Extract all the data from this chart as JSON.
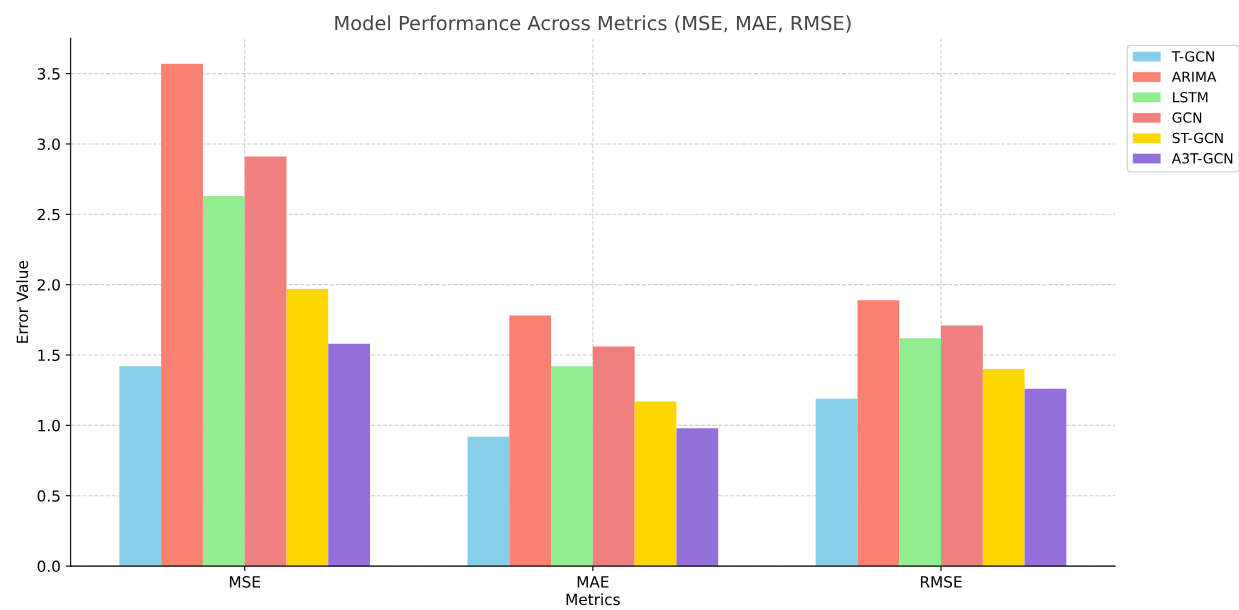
{
  "chart_data": {
    "type": "bar",
    "title": "Model Performance Across Metrics (MSE, MAE, RMSE)",
    "xlabel": "Metrics",
    "ylabel": "Error Value",
    "categories": [
      "MSE",
      "MAE",
      "RMSE"
    ],
    "series": [
      {
        "name": "T-GCN",
        "color": "#87ceeb",
        "values": [
          1.42,
          0.92,
          1.19
        ]
      },
      {
        "name": "ARIMA",
        "color": "#fa8072",
        "values": [
          3.57,
          1.78,
          1.89
        ]
      },
      {
        "name": "LSTM",
        "color": "#90ee90",
        "values": [
          2.63,
          1.42,
          1.62
        ]
      },
      {
        "name": "GCN",
        "color": "#f08080",
        "values": [
          2.91,
          1.56,
          1.71
        ]
      },
      {
        "name": "ST-GCN",
        "color": "#ffd700",
        "values": [
          1.97,
          1.17,
          1.4
        ]
      },
      {
        "name": "A3T-GCN",
        "color": "#9370db",
        "values": [
          1.58,
          0.98,
          1.26
        ]
      }
    ],
    "ylim": [
      0,
      3.75
    ],
    "yticks": [
      {
        "value": 0,
        "label": "0.0"
      },
      0.5,
      {
        "value": 1,
        "label": "1.0"
      },
      1.5,
      {
        "value": 2,
        "label": "2.0"
      },
      2.5,
      {
        "value": 3,
        "label": "3.0"
      },
      3.5
    ],
    "grid": true,
    "line_style": "dashed",
    "legend": "top right"
  }
}
